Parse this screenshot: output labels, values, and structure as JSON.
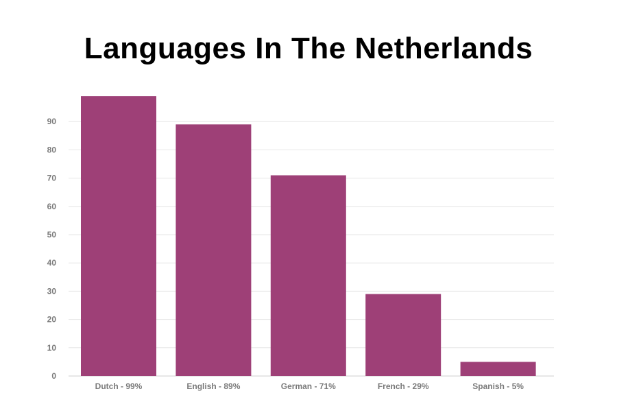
{
  "chart_data": {
    "type": "bar",
    "title": "Languages In The Netherlands",
    "xlabel": "",
    "ylabel": "",
    "categories": [
      "Dutch - 99%",
      "English - 89%",
      "German - 71%",
      "French - 29%",
      "Spanish - 5%"
    ],
    "values": [
      99,
      89,
      71,
      29,
      5
    ],
    "ylim": [
      0,
      100
    ],
    "yticks": [
      0,
      10,
      20,
      30,
      40,
      50,
      60,
      70,
      80,
      90
    ],
    "bar_color": "#9e4077",
    "grid": true,
    "legend": "none"
  }
}
